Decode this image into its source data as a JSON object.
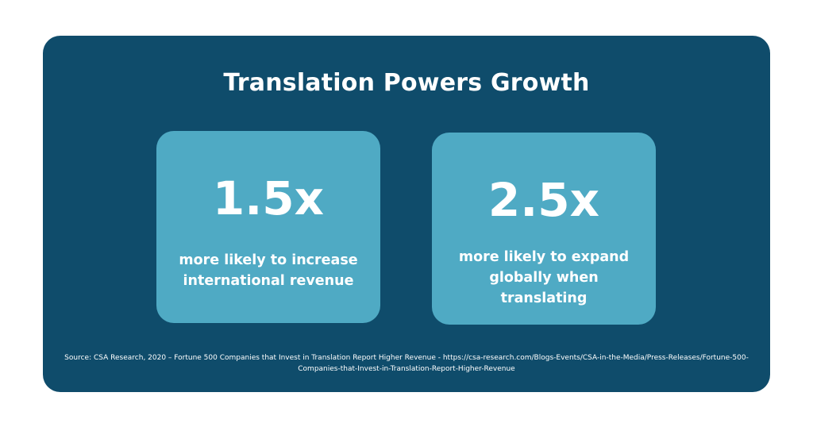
{
  "title": "Translation Powers Growth",
  "stats": [
    {
      "value": "1.5x",
      "description": "more likely to increase international revenue"
    },
    {
      "value": "2.5x",
      "description": "more likely to expand globally when translating"
    }
  ],
  "source": "Source: CSA Research, 2020 – Fortune 500 Companies that Invest in Translation Report Higher Revenue - https://csa-research.com/Blogs-Events/CSA-in-the-Media/Press-Releases/Fortune-500-Companies-that-Invest-in-Translation-Report-Higher-Revenue",
  "colors": {
    "background": "#ffffff",
    "card": "#0f4c6b",
    "stat_box": "#4faac4",
    "text": "#ffffff"
  }
}
